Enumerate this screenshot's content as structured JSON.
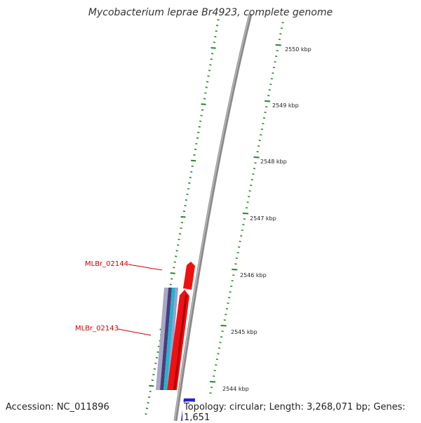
{
  "title": "Mycobacterium leprae Br4923, complete genome",
  "accession_text": "Accession: NC_011896",
  "topology_text": "Topology: circular; Length: 3,268,071 bp; Genes: 1,651",
  "tick_labels": [
    "2550 kbp",
    "2549 kbp",
    "2548 kbp",
    "2547 kbp",
    "2546 kbp",
    "2545 kbp",
    "2544 kbp"
  ],
  "genes": [
    {
      "name": "MLBr_02144"
    },
    {
      "name": "MLBr_02143"
    }
  ],
  "colors": {
    "backbone": "#888888",
    "ticks": "#228822",
    "gene_forward": "#ee1111",
    "gene_label": "#cc0000",
    "feature_blue": "#2222dd",
    "feature_teal": "#22aacc",
    "feature_purple": "#554488"
  }
}
